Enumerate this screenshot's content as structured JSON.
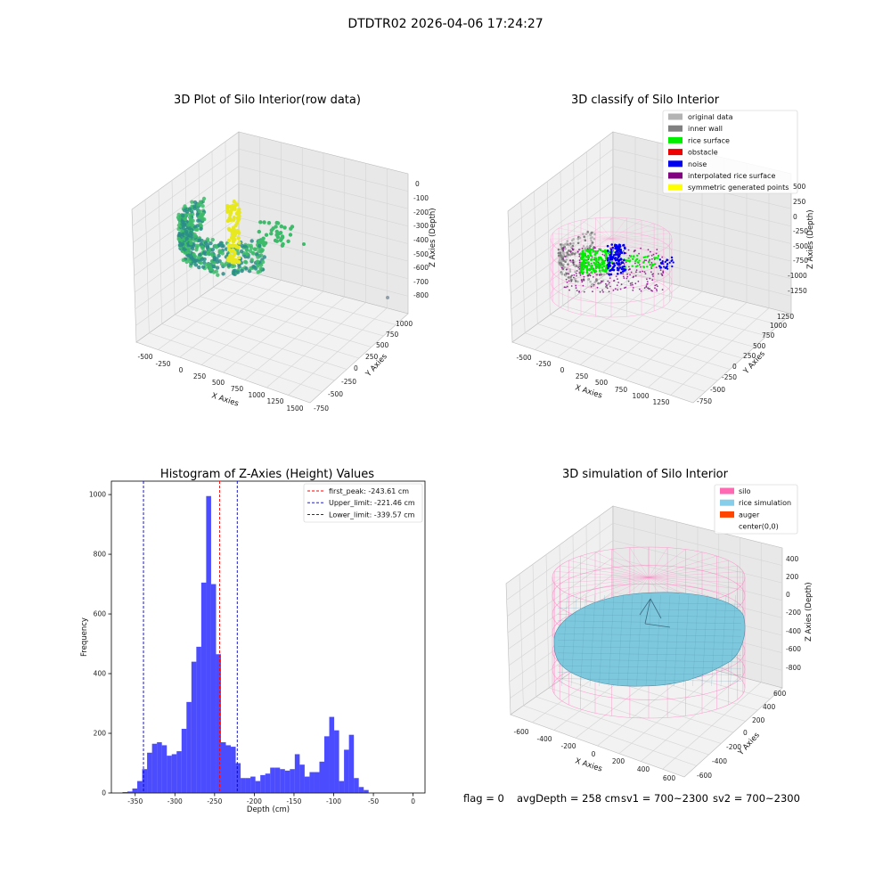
{
  "figure": {
    "title": "DTDTR02 2026-04-06 17:24:27",
    "footer": {
      "flag": "flag = 0",
      "avg_depth": "avgDepth = 258 cm",
      "sv1": "sv1 = 700~2300",
      "sv2": "sv2 = 700~2300"
    }
  },
  "chart_data": [
    {
      "type": "scatter",
      "projection": "3d",
      "title": "3D Plot of Silo Interior(row data)",
      "xlabel": "X Axies",
      "ylabel": "Y Axies",
      "zlabel": "Z Axies (Depth)",
      "x_ticks": [
        "-500",
        "-250",
        "0",
        "250",
        "500",
        "750",
        "1000",
        "1250",
        "1500"
      ],
      "y_ticks": [
        "-750",
        "-500",
        "-250",
        "0",
        "250",
        "500",
        "750",
        "1000"
      ],
      "z_ticks": [
        "0",
        "-100",
        "-200",
        "-300",
        "-400",
        "-500",
        "-600",
        "-700",
        "-800"
      ],
      "colormap": "viridis",
      "colors": {
        "low": "#2a8c8a",
        "mid": "#3dbb6a",
        "high": "#e8e820",
        "outlier": "#8f9ea8"
      }
    },
    {
      "type": "scatter",
      "projection": "3d",
      "title": "3D classify of Silo Interior",
      "xlabel": "X Axies",
      "ylabel": "Y Axies",
      "zlabel": "Z Axies (Depth)",
      "x_ticks": [
        "-500",
        "-250",
        "0",
        "250",
        "500",
        "750",
        "1000",
        "1250"
      ],
      "y_ticks": [
        "-750",
        "-500",
        "-250",
        "0",
        "250",
        "500",
        "750",
        "1000",
        "1250"
      ],
      "z_ticks": [
        "500",
        "250",
        "0",
        "-250",
        "-500",
        "-750",
        "-1000",
        "-1250"
      ],
      "legend": [
        {
          "label": "original data",
          "color": "#b3b3b3"
        },
        {
          "label": "inner wall",
          "color": "#808080"
        },
        {
          "label": "rice surface",
          "color": "#00ee00"
        },
        {
          "label": "obstacle",
          "color": "#ee0000"
        },
        {
          "label": "noise",
          "color": "#0000ee"
        },
        {
          "label": "interpolated rice surface",
          "color": "#800080"
        },
        {
          "label": "symmetric generated points",
          "color": "#ffff00"
        }
      ],
      "silo_color": "#ff9ed4"
    },
    {
      "type": "bar",
      "title": "Histogram of Z-Axies (Height) Values",
      "xlabel": "Depth (cm)",
      "ylabel": "Frequency",
      "xlim": [
        -380,
        15
      ],
      "ylim": [
        0,
        1045
      ],
      "x_ticks": [
        -350,
        -300,
        -250,
        -200,
        -150,
        -100,
        -50,
        0
      ],
      "y_ticks": [
        0,
        200,
        400,
        600,
        800,
        1000
      ],
      "bin_start": -366,
      "bin_width": 6.2,
      "values": [
        3,
        5,
        15,
        40,
        80,
        135,
        165,
        170,
        160,
        125,
        130,
        140,
        215,
        305,
        440,
        490,
        705,
        995,
        700,
        465,
        170,
        160,
        155,
        100,
        50,
        50,
        55,
        40,
        60,
        65,
        85,
        85,
        80,
        75,
        80,
        130,
        95,
        55,
        70,
        70,
        105,
        190,
        255,
        210,
        40,
        145,
        195,
        50,
        20,
        10
      ],
      "bar_color": "#0000ff",
      "bar_opacity": 0.7,
      "lines": [
        {
          "label": "first_peak: -243.61 cm",
          "x": -243.61,
          "color": "#ff0000"
        },
        {
          "label": "Upper_limit: -221.46 cm",
          "x": -221.46,
          "color": "#0000bb"
        },
        {
          "label": "Lower_limit: -339.57 cm",
          "x": -339.57,
          "color": "#0000bb"
        }
      ]
    },
    {
      "type": "surface",
      "projection": "3d",
      "title": "3D simulation of Silo Interior",
      "xlabel": "X Axies",
      "ylabel": "Y Axies",
      "zlabel": "Z Axies (Depth)",
      "x_ticks": [
        "-600",
        "-400",
        "-200",
        "0",
        "200",
        "400",
        "600"
      ],
      "y_ticks": [
        "-600",
        "-400",
        "-200",
        "0",
        "200",
        "400",
        "600"
      ],
      "z_ticks": [
        "400",
        "200",
        "0",
        "-200",
        "-400",
        "-600",
        "-800"
      ],
      "legend": [
        {
          "label": "silo",
          "color": "#ff69b4"
        },
        {
          "label": "rice simulation",
          "color": "#87ceeb"
        },
        {
          "label": "auger",
          "color": "#ff4500"
        },
        {
          "label": "center(0,0)",
          "color": "#ffffff"
        }
      ],
      "surface_color": "#7ec8dd",
      "mesh_color": "#4a8fa8",
      "silo_color": "#ff7fc0"
    }
  ]
}
